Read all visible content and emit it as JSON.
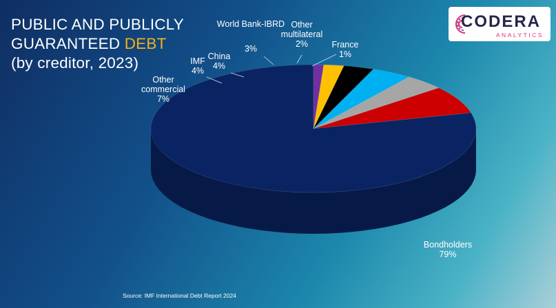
{
  "title": {
    "line1": "PUBLIC AND PUBLICLY",
    "line2_main": "GUARANTEED ",
    "line2_accent": "DEBT",
    "line3": "(by creditor, 2023)"
  },
  "logo": {
    "brand": "CODERA",
    "tagline": "ANALYTICS"
  },
  "source": "Source: IMF  International Debt Report 2024",
  "colors": {
    "accent": "#f2b21c",
    "bondholders": "#0a2463",
    "other_commercial": "#cc0000",
    "imf": "#a6a6a6",
    "china": "#00b0f0",
    "world_bank": "#000000",
    "other_multilateral": "#ffc000",
    "france": "#7030a0"
  },
  "chart_data": {
    "type": "pie",
    "style": "3d",
    "title": "PUBLIC AND PUBLICLY GUARANTEED DEBT (by creditor, 2023)",
    "slices": [
      {
        "label": "Bondholders",
        "value": 79,
        "display": "79%",
        "color": "#0a2463"
      },
      {
        "label": "Other commercial",
        "value": 7,
        "display": "7%",
        "color": "#cc0000"
      },
      {
        "label": "IMF",
        "value": 4,
        "display": "4%",
        "color": "#a6a6a6"
      },
      {
        "label": "China",
        "value": 4,
        "display": "4%",
        "color": "#00b0f0"
      },
      {
        "label": "World Bank-IBRD",
        "value": 3,
        "display": "3%",
        "color": "#000000"
      },
      {
        "label": "Other multilateral",
        "value": 2,
        "display": "2%",
        "color": "#ffc000"
      },
      {
        "label": "France",
        "value": 1,
        "display": "1%",
        "color": "#7030a0"
      }
    ]
  }
}
